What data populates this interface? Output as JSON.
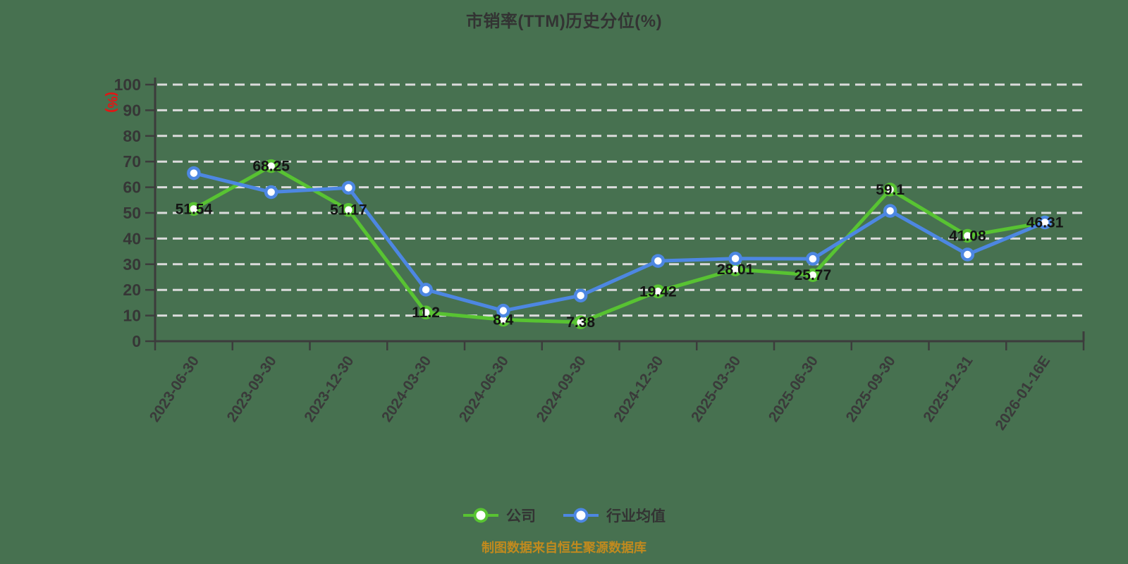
{
  "page": {
    "background_color": "#477150"
  },
  "chart": {
    "title": "市销率(TTM)历史分位(%)",
    "y_unit": "(%)",
    "y_unit_color": "#E81212",
    "source_note": "制图数据来自恒生聚源数据库",
    "source_color": "#C18A1E"
  },
  "chart_data": {
    "type": "line",
    "title": "市销率(TTM)历史分位(%)",
    "xlabel": "",
    "ylabel": "(%)",
    "ylim": [
      0,
      100
    ],
    "y_tick_step": 10,
    "grid": "horizontal-dashed-white",
    "legend_position": "bottom",
    "categories": [
      "2023-06-30",
      "2023-09-30",
      "2023-12-30",
      "2024-03-30",
      "2024-06-30",
      "2024-09-30",
      "2024-12-30",
      "2025-03-30",
      "2025-06-30",
      "2025-09-30",
      "2025-12-31",
      "2026-01-16E"
    ],
    "series": [
      {
        "name": "公司",
        "color": "#58C332",
        "marker": "circle-white-fill",
        "show_labels": true,
        "values": [
          51.54,
          68.25,
          51.17,
          11.2,
          8.4,
          7.38,
          19.42,
          28.01,
          25.77,
          59.1,
          41.08,
          46.31
        ]
      },
      {
        "name": "行业均值",
        "color": "#4D87E2",
        "marker": "circle-white-fill",
        "show_labels": false,
        "values": [
          65.5,
          58.1,
          59.8,
          20.1,
          11.9,
          17.8,
          31.3,
          32.2,
          32.1,
          50.8,
          33.8,
          46.3
        ]
      }
    ]
  }
}
